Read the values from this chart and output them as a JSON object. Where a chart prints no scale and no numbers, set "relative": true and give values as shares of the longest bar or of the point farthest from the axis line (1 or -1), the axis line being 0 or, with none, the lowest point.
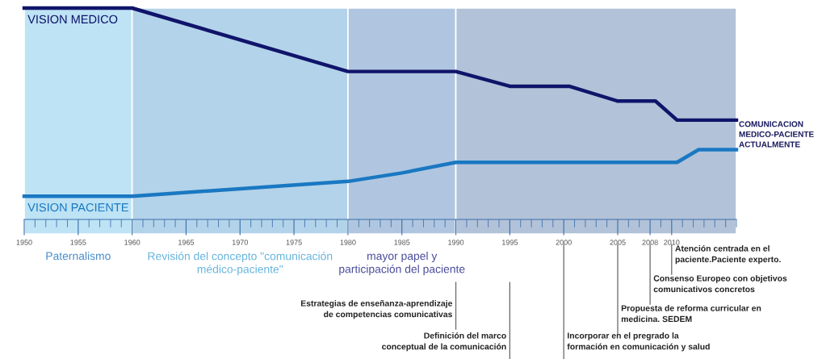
{
  "chart_data": {
    "type": "line",
    "relative": true,
    "xlim": [
      1950,
      2016
    ],
    "xticks": [
      1950,
      1955,
      1960,
      1965,
      1970,
      1975,
      1980,
      1985,
      1990,
      1995,
      2000,
      2005,
      2008,
      2010
    ],
    "series": [
      {
        "name": "VISION MEDICO",
        "color": "#10146a",
        "x": [
          1950,
          1960,
          1980,
          1990,
          1995,
          2000.5,
          2005,
          2008.5,
          2010.5,
          2016
        ],
        "values": [
          1.0,
          1.0,
          0.7,
          0.7,
          0.63,
          0.63,
          0.56,
          0.56,
          0.47,
          0.47
        ]
      },
      {
        "name": "VISION PACIENTE",
        "color": "#1a78c2",
        "x": [
          1950,
          1960,
          1980,
          1985,
          1990,
          2010.5,
          2012.5,
          2016
        ],
        "values": [
          0.11,
          0.11,
          0.18,
          0.22,
          0.27,
          0.27,
          0.33,
          0.33
        ]
      }
    ],
    "bands": [
      {
        "axis": "x",
        "from": 1950,
        "to": 1960,
        "label": "Paternalismo",
        "color": "#bde3f5"
      },
      {
        "axis": "x",
        "from": 1960,
        "to": 1980,
        "label": "Revisión del concepto \"comunicación\nmédico-paciente\"",
        "color": "#b3d3ea"
      },
      {
        "axis": "x",
        "from": 1980,
        "to": 1990,
        "label": "mayor papel y\nparticipación del paciente",
        "color": "#b0c6e0"
      },
      {
        "axis": "x",
        "from": 1990,
        "to": 2016,
        "label": null,
        "color": "#b2c2d8"
      }
    ],
    "ref_lines": [
      {
        "axis": "x",
        "value": 1990,
        "label": "Estrategias de enseñanza-aprendizaje\nde competencias comunicativas"
      },
      {
        "axis": "x",
        "value": 1995,
        "label": "Definición del marco\nconceptual de la comunicación"
      },
      {
        "axis": "x",
        "value": 2000,
        "label": "Incorporar en el pregrado la\nformación en comunicación y salud"
      },
      {
        "axis": "x",
        "value": 2005,
        "label": "Propuesta de reforma curricular en\nmedicina. SEDEM"
      },
      {
        "axis": "x",
        "value": 2008,
        "label": "Consenso Europeo con objetivos\ncomunicativos concretos"
      },
      {
        "axis": "x",
        "value": 2010,
        "label": "Atención centrada en el\npaciente.Paciente experto."
      }
    ],
    "annotations": [
      "COMUNICACION\nMEDICO-PACIENTE\nACTUALMENTE"
    ],
    "grid": false,
    "legend": false,
    "marker": "none",
    "line_style": "solid"
  }
}
